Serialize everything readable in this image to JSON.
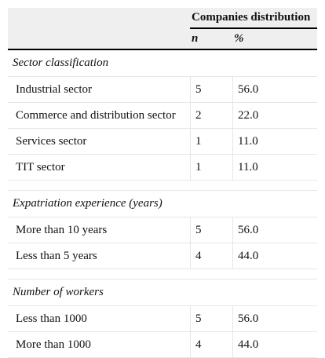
{
  "header": {
    "group_title": "Companies distribution",
    "col_n": "n",
    "col_pct": "%"
  },
  "sections": [
    {
      "title": "Sector classification",
      "rows": [
        {
          "label": "Industrial sector",
          "n": "5",
          "pct": "56.0"
        },
        {
          "label": "Commerce and distribution sector",
          "n": "2",
          "pct": "22.0"
        },
        {
          "label": "Services sector",
          "n": "1",
          "pct": "11.0"
        },
        {
          "label": "TIT sector",
          "n": "1",
          "pct": "11.0"
        }
      ]
    },
    {
      "title": "Expatriation experience (years)",
      "rows": [
        {
          "label": "More than 10 years",
          "n": "5",
          "pct": "56.0"
        },
        {
          "label": "Less than 5 years",
          "n": "4",
          "pct": "44.0"
        }
      ]
    },
    {
      "title": "Number of workers",
      "rows": [
        {
          "label": "Less than 1000",
          "n": "5",
          "pct": "56.0"
        },
        {
          "label": "More than 1000",
          "n": "4",
          "pct": "44.0"
        }
      ]
    }
  ]
}
